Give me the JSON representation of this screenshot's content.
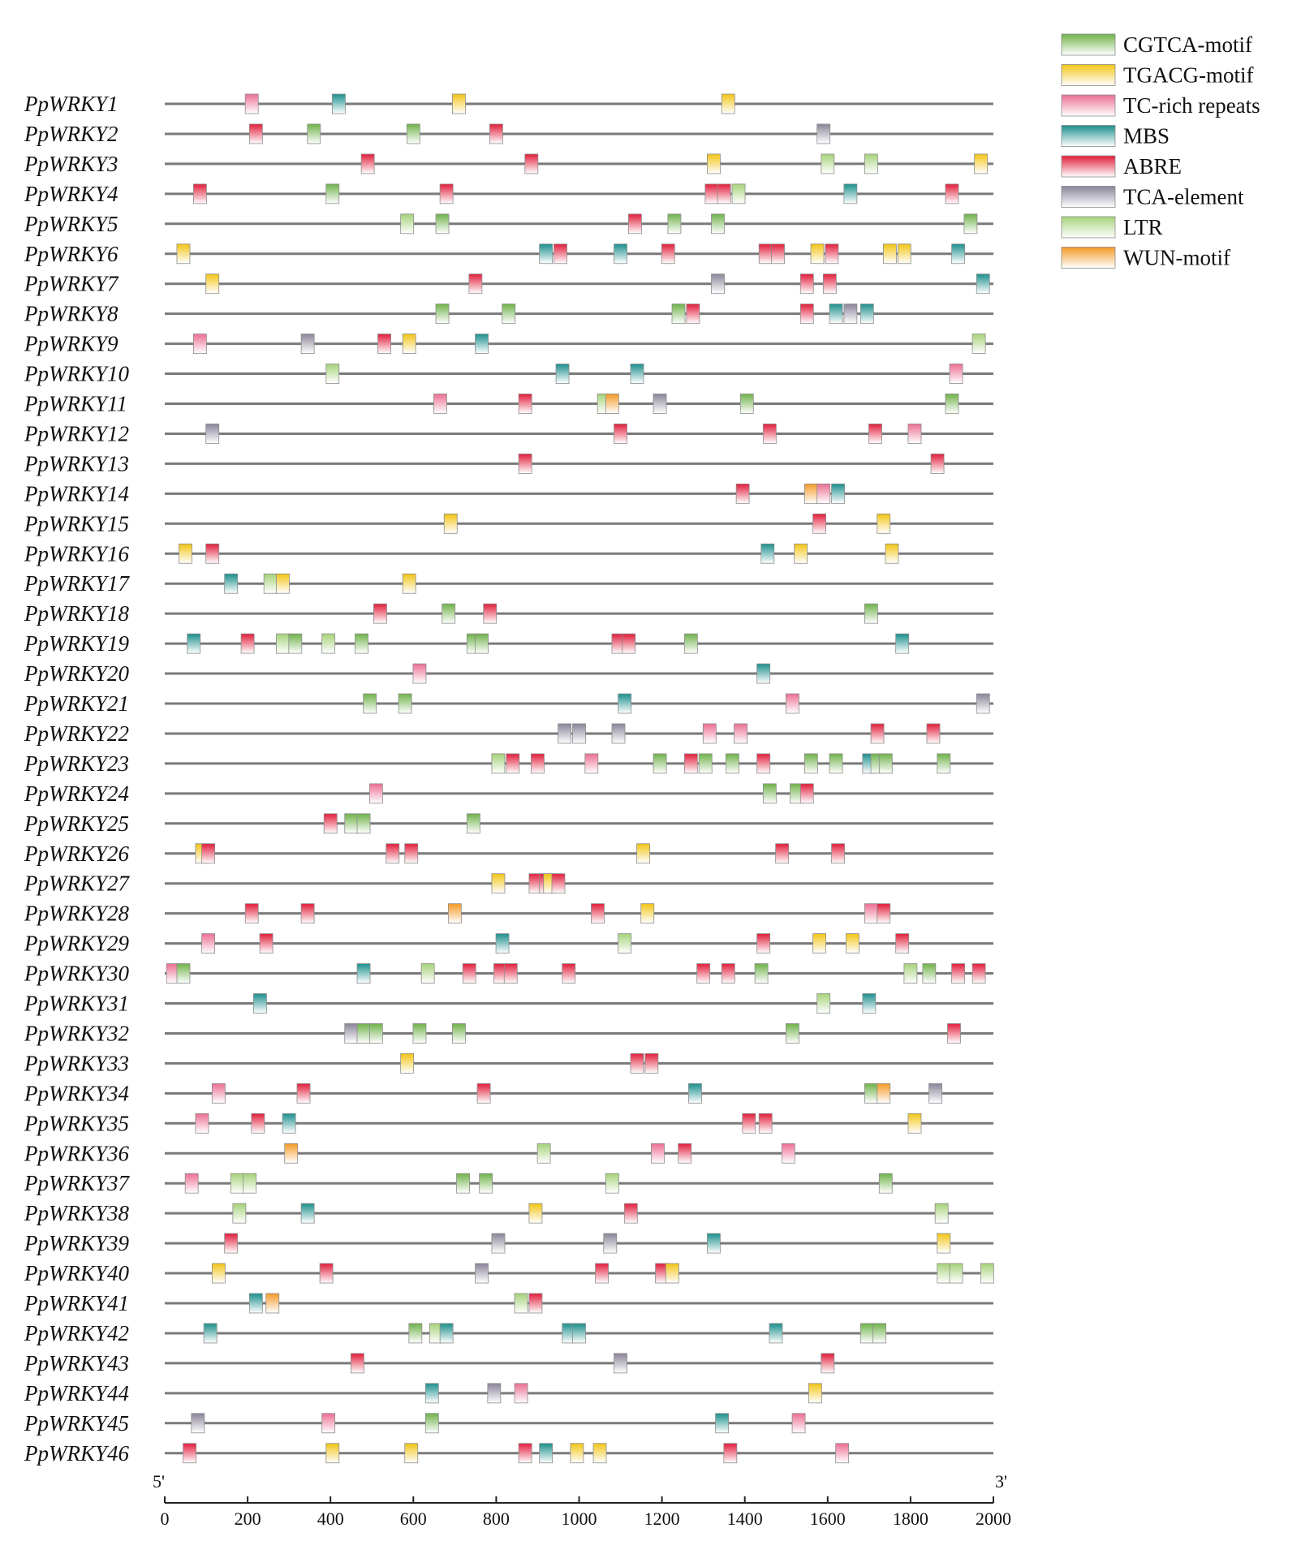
{
  "axis": {
    "five_prime": "5'",
    "three_prime": "3'",
    "min": 0,
    "max": 2000,
    "ticks": [
      0,
      200,
      400,
      600,
      800,
      1000,
      1200,
      1400,
      1600,
      1800,
      2000
    ]
  },
  "legend": [
    {
      "key": "cgtca",
      "label": "CGTCA-motif",
      "color": "#6fb24a",
      "icon": "cgtca-motif-swatch"
    },
    {
      "key": "tgacg",
      "label": "TGACG-motif",
      "color": "#f2c516",
      "icon": "tgacg-motif-swatch"
    },
    {
      "key": "tcrich",
      "label": "TC-rich repeats",
      "color": "#ec6f93",
      "icon": "tc-rich-repeats-swatch"
    },
    {
      "key": "mbs",
      "label": "MBS",
      "color": "#1b8f8c",
      "icon": "mbs-swatch"
    },
    {
      "key": "abre",
      "label": "ABRE",
      "color": "#e11d3b",
      "icon": "abre-swatch"
    },
    {
      "key": "tca",
      "label": "TCA-element",
      "color": "#8a8499",
      "icon": "tca-element-swatch"
    },
    {
      "key": "ltr",
      "label": "LTR",
      "color": "#a6d27a",
      "icon": "ltr-swatch"
    },
    {
      "key": "wun",
      "label": "WUN-motif",
      "color": "#f49a27",
      "icon": "wun-motif-swatch"
    }
  ],
  "genes": [
    {
      "name": "PpWRKY1",
      "elements": [
        [
          "tcrich",
          210
        ],
        [
          "mbs",
          420
        ],
        [
          "tgacg",
          710
        ],
        [
          "tgacg",
          1360
        ]
      ]
    },
    {
      "name": "PpWRKY2",
      "elements": [
        [
          "abre",
          220
        ],
        [
          "cgtca",
          360
        ],
        [
          "cgtca",
          600
        ],
        [
          "abre",
          800
        ],
        [
          "tca",
          1590
        ]
      ]
    },
    {
      "name": "PpWRKY3",
      "elements": [
        [
          "abre",
          490
        ],
        [
          "abre",
          885
        ],
        [
          "tgacg",
          1325
        ],
        [
          "ltr",
          1600
        ],
        [
          "ltr",
          1705
        ],
        [
          "tgacg",
          1970
        ]
      ]
    },
    {
      "name": "PpWRKY4",
      "elements": [
        [
          "abre",
          85
        ],
        [
          "cgtca",
          405
        ],
        [
          "abre",
          680
        ],
        [
          "abre",
          1320
        ],
        [
          "abre",
          1350
        ],
        [
          "ltr",
          1385
        ],
        [
          "mbs",
          1655
        ],
        [
          "abre",
          1900
        ]
      ]
    },
    {
      "name": "PpWRKY5",
      "elements": [
        [
          "ltr",
          585
        ],
        [
          "cgtca",
          670
        ],
        [
          "abre",
          1135
        ],
        [
          "cgtca",
          1230
        ],
        [
          "cgtca",
          1335
        ],
        [
          "cgtca",
          1945
        ]
      ]
    },
    {
      "name": "PpWRKY6",
      "elements": [
        [
          "tgacg",
          45
        ],
        [
          "mbs",
          920
        ],
        [
          "abre",
          955
        ],
        [
          "mbs",
          1100
        ],
        [
          "abre",
          1215
        ],
        [
          "abre",
          1450
        ],
        [
          "abre",
          1480
        ],
        [
          "tgacg",
          1575
        ],
        [
          "abre",
          1610
        ],
        [
          "tgacg",
          1750
        ],
        [
          "tgacg",
          1785
        ],
        [
          "mbs",
          1915
        ]
      ]
    },
    {
      "name": "PpWRKY7",
      "elements": [
        [
          "tgacg",
          115
        ],
        [
          "abre",
          750
        ],
        [
          "tca",
          1335
        ],
        [
          "abre",
          1550
        ],
        [
          "abre",
          1605
        ],
        [
          "mbs",
          1975
        ]
      ]
    },
    {
      "name": "PpWRKY8",
      "elements": [
        [
          "cgtca",
          670
        ],
        [
          "cgtca",
          830
        ],
        [
          "cgtca",
          1240
        ],
        [
          "abre",
          1275
        ],
        [
          "abre",
          1550
        ],
        [
          "mbs",
          1620
        ],
        [
          "tca",
          1655
        ],
        [
          "mbs",
          1695
        ]
      ]
    },
    {
      "name": "PpWRKY9",
      "elements": [
        [
          "tcrich",
          85
        ],
        [
          "tca",
          345
        ],
        [
          "abre",
          530
        ],
        [
          "tgacg",
          590
        ],
        [
          "mbs",
          765
        ],
        [
          "ltr",
          1965
        ]
      ]
    },
    {
      "name": "PpWRKY10",
      "elements": [
        [
          "ltr",
          405
        ],
        [
          "mbs",
          960
        ],
        [
          "mbs",
          1140
        ],
        [
          "tcrich",
          1910
        ]
      ]
    },
    {
      "name": "PpWRKY11",
      "elements": [
        [
          "tcrich",
          665
        ],
        [
          "abre",
          870
        ],
        [
          "ltr",
          1060
        ],
        [
          "wun",
          1080
        ],
        [
          "tca",
          1195
        ],
        [
          "cgtca",
          1405
        ],
        [
          "cgtca",
          1900
        ]
      ]
    },
    {
      "name": "PpWRKY12",
      "elements": [
        [
          "tca",
          115
        ],
        [
          "abre",
          1100
        ],
        [
          "abre",
          1460
        ],
        [
          "abre",
          1715
        ],
        [
          "tcrich",
          1810
        ]
      ]
    },
    {
      "name": "PpWRKY13",
      "elements": [
        [
          "abre",
          870
        ],
        [
          "abre",
          1865
        ]
      ]
    },
    {
      "name": "PpWRKY14",
      "elements": [
        [
          "abre",
          1395
        ],
        [
          "wun",
          1560
        ],
        [
          "tcrich",
          1590
        ],
        [
          "mbs",
          1625
        ]
      ]
    },
    {
      "name": "PpWRKY15",
      "elements": [
        [
          "tgacg",
          690
        ],
        [
          "abre",
          1580
        ],
        [
          "tgacg",
          1735
        ]
      ]
    },
    {
      "name": "PpWRKY16",
      "elements": [
        [
          "tgacg",
          50
        ],
        [
          "abre",
          115
        ],
        [
          "mbs",
          1455
        ],
        [
          "tgacg",
          1535
        ],
        [
          "tgacg",
          1755
        ]
      ]
    },
    {
      "name": "PpWRKY17",
      "elements": [
        [
          "mbs",
          160
        ],
        [
          "ltr",
          255
        ],
        [
          "tgacg",
          285
        ],
        [
          "tgacg",
          590
        ]
      ]
    },
    {
      "name": "PpWRKY18",
      "elements": [
        [
          "abre",
          520
        ],
        [
          "cgtca",
          685
        ],
        [
          "abre",
          785
        ],
        [
          "cgtca",
          1705
        ]
      ]
    },
    {
      "name": "PpWRKY19",
      "elements": [
        [
          "mbs",
          70
        ],
        [
          "abre",
          200
        ],
        [
          "ltr",
          285
        ],
        [
          "cgtca",
          315
        ],
        [
          "ltr",
          395
        ],
        [
          "cgtca",
          475
        ],
        [
          "cgtca",
          745
        ],
        [
          "cgtca",
          765
        ],
        [
          "abre",
          1095
        ],
        [
          "abre",
          1120
        ],
        [
          "cgtca",
          1270
        ],
        [
          "mbs",
          1780
        ]
      ]
    },
    {
      "name": "PpWRKY20",
      "elements": [
        [
          "tcrich",
          615
        ],
        [
          "mbs",
          1445
        ]
      ]
    },
    {
      "name": "PpWRKY21",
      "elements": [
        [
          "cgtca",
          495
        ],
        [
          "cgtca",
          580
        ],
        [
          "mbs",
          1110
        ],
        [
          "tcrich",
          1515
        ],
        [
          "tca",
          1975
        ]
      ]
    },
    {
      "name": "PpWRKY22",
      "elements": [
        [
          "tca",
          965
        ],
        [
          "tca",
          1000
        ],
        [
          "tca",
          1095
        ],
        [
          "tcrich",
          1315
        ],
        [
          "tcrich",
          1390
        ],
        [
          "abre",
          1720
        ],
        [
          "abre",
          1855
        ]
      ]
    },
    {
      "name": "PpWRKY23",
      "elements": [
        [
          "ltr",
          805
        ],
        [
          "abre",
          840
        ],
        [
          "abre",
          900
        ],
        [
          "tcrich",
          1030
        ],
        [
          "cgtca",
          1195
        ],
        [
          "abre",
          1270
        ],
        [
          "cgtca",
          1305
        ],
        [
          "cgtca",
          1370
        ],
        [
          "abre",
          1445
        ],
        [
          "cgtca",
          1560
        ],
        [
          "cgtca",
          1620
        ],
        [
          "mbs",
          1700
        ],
        [
          "cgtca",
          1720
        ],
        [
          "cgtca",
          1740
        ],
        [
          "cgtca",
          1880
        ]
      ]
    },
    {
      "name": "PpWRKY24",
      "elements": [
        [
          "tcrich",
          510
        ],
        [
          "cgtca",
          1460
        ],
        [
          "cgtca",
          1525
        ],
        [
          "abre",
          1550
        ]
      ]
    },
    {
      "name": "PpWRKY25",
      "elements": [
        [
          "abre",
          400
        ],
        [
          "cgtca",
          450
        ],
        [
          "cgtca",
          480
        ],
        [
          "cgtca",
          745
        ]
      ]
    },
    {
      "name": "PpWRKY26",
      "elements": [
        [
          "tgacg",
          90
        ],
        [
          "abre",
          105
        ],
        [
          "abre",
          550
        ],
        [
          "abre",
          595
        ],
        [
          "tgacg",
          1155
        ],
        [
          "abre",
          1490
        ],
        [
          "abre",
          1625
        ]
      ]
    },
    {
      "name": "PpWRKY27",
      "elements": [
        [
          "tgacg",
          805
        ],
        [
          "abre",
          895
        ],
        [
          "abre",
          920
        ],
        [
          "tgacg",
          930
        ],
        [
          "abre",
          950
        ]
      ]
    },
    {
      "name": "PpWRKY28",
      "elements": [
        [
          "abre",
          210
        ],
        [
          "abre",
          345
        ],
        [
          "wun",
          700
        ],
        [
          "abre",
          1045
        ],
        [
          "tgacg",
          1165
        ],
        [
          "tcrich",
          1705
        ],
        [
          "abre",
          1735
        ]
      ]
    },
    {
      "name": "PpWRKY29",
      "elements": [
        [
          "tcrich",
          105
        ],
        [
          "abre",
          245
        ],
        [
          "mbs",
          815
        ],
        [
          "ltr",
          1110
        ],
        [
          "abre",
          1445
        ],
        [
          "tgacg",
          1580
        ],
        [
          "tgacg",
          1660
        ],
        [
          "abre",
          1780
        ]
      ]
    },
    {
      "name": "PpWRKY30",
      "elements": [
        [
          "tcrich",
          20
        ],
        [
          "cgtca",
          45
        ],
        [
          "mbs",
          480
        ],
        [
          "ltr",
          635
        ],
        [
          "abre",
          735
        ],
        [
          "abre",
          810
        ],
        [
          "abre",
          835
        ],
        [
          "abre",
          975
        ],
        [
          "abre",
          1300
        ],
        [
          "abre",
          1360
        ],
        [
          "cgtca",
          1440
        ],
        [
          "ltr",
          1800
        ],
        [
          "cgtca",
          1845
        ],
        [
          "abre",
          1915
        ],
        [
          "abre",
          1965
        ]
      ]
    },
    {
      "name": "PpWRKY31",
      "elements": [
        [
          "mbs",
          230
        ],
        [
          "ltr",
          1590
        ],
        [
          "mbs",
          1700
        ]
      ]
    },
    {
      "name": "PpWRKY32",
      "elements": [
        [
          "tca",
          450
        ],
        [
          "cgtca",
          480
        ],
        [
          "cgtca",
          510
        ],
        [
          "cgtca",
          615
        ],
        [
          "cgtca",
          710
        ],
        [
          "cgtca",
          1515
        ],
        [
          "abre",
          1905
        ]
      ]
    },
    {
      "name": "PpWRKY33",
      "elements": [
        [
          "tgacg",
          585
        ],
        [
          "abre",
          1140
        ],
        [
          "abre",
          1175
        ]
      ]
    },
    {
      "name": "PpWRKY34",
      "elements": [
        [
          "tcrich",
          130
        ],
        [
          "abre",
          335
        ],
        [
          "abre",
          770
        ],
        [
          "mbs",
          1280
        ],
        [
          "cgtca",
          1705
        ],
        [
          "wun",
          1735
        ],
        [
          "tca",
          1860
        ]
      ]
    },
    {
      "name": "PpWRKY35",
      "elements": [
        [
          "tcrich",
          90
        ],
        [
          "abre",
          225
        ],
        [
          "mbs",
          300
        ],
        [
          "abre",
          1410
        ],
        [
          "abre",
          1450
        ],
        [
          "tgacg",
          1810
        ]
      ]
    },
    {
      "name": "PpWRKY36",
      "elements": [
        [
          "wun",
          305
        ],
        [
          "ltr",
          915
        ],
        [
          "tcrich",
          1190
        ],
        [
          "abre",
          1255
        ],
        [
          "tcrich",
          1505
        ]
      ]
    },
    {
      "name": "PpWRKY37",
      "elements": [
        [
          "tcrich",
          65
        ],
        [
          "ltr",
          175
        ],
        [
          "ltr",
          205
        ],
        [
          "cgtca",
          720
        ],
        [
          "cgtca",
          775
        ],
        [
          "ltr",
          1080
        ],
        [
          "cgtca",
          1740
        ]
      ]
    },
    {
      "name": "PpWRKY38",
      "elements": [
        [
          "ltr",
          180
        ],
        [
          "mbs",
          345
        ],
        [
          "tgacg",
          895
        ],
        [
          "abre",
          1125
        ],
        [
          "ltr",
          1875
        ]
      ]
    },
    {
      "name": "PpWRKY39",
      "elements": [
        [
          "abre",
          160
        ],
        [
          "tca",
          805
        ],
        [
          "tca",
          1075
        ],
        [
          "mbs",
          1325
        ],
        [
          "tgacg",
          1880
        ]
      ]
    },
    {
      "name": "PpWRKY40",
      "elements": [
        [
          "tgacg",
          130
        ],
        [
          "abre",
          390
        ],
        [
          "tca",
          765
        ],
        [
          "abre",
          1055
        ],
        [
          "abre",
          1200
        ],
        [
          "tgacg",
          1225
        ],
        [
          "ltr",
          1880
        ],
        [
          "ltr",
          1910
        ],
        [
          "ltr",
          1985
        ]
      ]
    },
    {
      "name": "PpWRKY41",
      "elements": [
        [
          "mbs",
          220
        ],
        [
          "wun",
          260
        ],
        [
          "ltr",
          860
        ],
        [
          "abre",
          895
        ]
      ]
    },
    {
      "name": "PpWRKY42",
      "elements": [
        [
          "mbs",
          110
        ],
        [
          "cgtca",
          605
        ],
        [
          "ltr",
          655
        ],
        [
          "mbs",
          680
        ],
        [
          "mbs",
          975
        ],
        [
          "mbs",
          1000
        ],
        [
          "mbs",
          1475
        ],
        [
          "cgtca",
          1695
        ],
        [
          "cgtca",
          1725
        ]
      ]
    },
    {
      "name": "PpWRKY43",
      "elements": [
        [
          "abre",
          465
        ],
        [
          "tca",
          1100
        ],
        [
          "abre",
          1600
        ]
      ]
    },
    {
      "name": "PpWRKY44",
      "elements": [
        [
          "mbs",
          645
        ],
        [
          "tca",
          795
        ],
        [
          "tcrich",
          860
        ],
        [
          "tgacg",
          1570
        ]
      ]
    },
    {
      "name": "PpWRKY45",
      "elements": [
        [
          "tca",
          80
        ],
        [
          "tcrich",
          395
        ],
        [
          "cgtca",
          645
        ],
        [
          "mbs",
          1345
        ],
        [
          "tcrich",
          1530
        ]
      ]
    },
    {
      "name": "PpWRKY46",
      "elements": [
        [
          "abre",
          60
        ],
        [
          "tgacg",
          405
        ],
        [
          "tgacg",
          595
        ],
        [
          "abre",
          870
        ],
        [
          "mbs",
          920
        ],
        [
          "tgacg",
          995
        ],
        [
          "tgacg",
          1050
        ],
        [
          "abre",
          1365
        ],
        [
          "tcrich",
          1635
        ]
      ]
    }
  ]
}
